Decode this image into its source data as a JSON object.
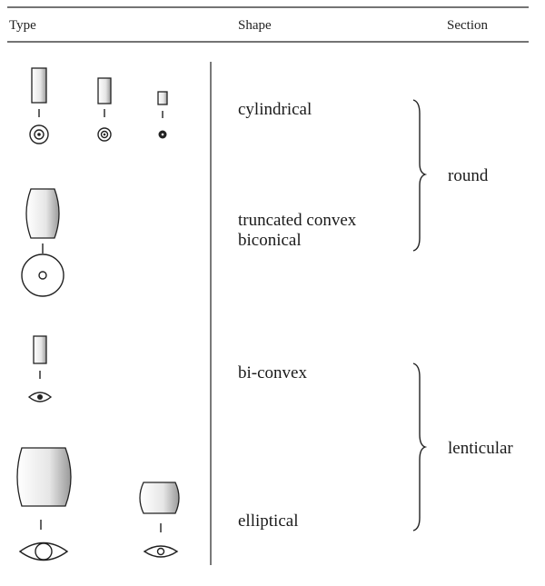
{
  "header": {
    "type": "Type",
    "shape": "Shape",
    "section": "Section"
  },
  "shapes": [
    [
      "cylindrical"
    ],
    [
      "truncated convex",
      "biconical"
    ],
    [
      "bi-convex"
    ],
    [
      "elliptical"
    ]
  ],
  "sections": [
    "round",
    "lenticular"
  ]
}
